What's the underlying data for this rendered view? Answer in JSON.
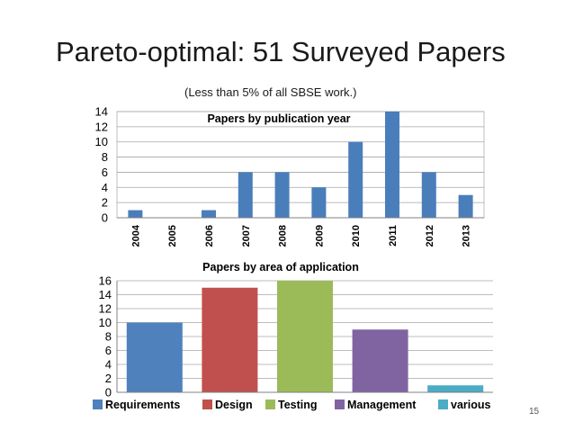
{
  "slide": {
    "title": "Pareto-optimal: 51 Surveyed Papers",
    "subtitle": "(Less than 5% of all SBSE work.)",
    "page_number": "15"
  },
  "chart_data": [
    {
      "type": "bar",
      "title": "Papers by publication year",
      "categories": [
        "2004",
        "2005",
        "2006",
        "2007",
        "2008",
        "2009",
        "2010",
        "2011",
        "2012",
        "2013"
      ],
      "values": [
        1,
        0,
        1,
        6,
        6,
        4,
        10,
        14,
        6,
        3
      ],
      "ylim": [
        0,
        14
      ],
      "yticks": [
        0,
        2,
        4,
        6,
        8,
        10,
        12,
        14
      ],
      "color": "#4a7ebb",
      "grid": true,
      "legend": "none"
    },
    {
      "type": "bar",
      "title": "Papers by area of application",
      "categories": [
        "Requirements",
        "Design",
        "Testing",
        "Management",
        "various"
      ],
      "values": [
        10,
        15,
        16,
        9,
        1
      ],
      "colors": [
        "#4f81bd",
        "#c0504d",
        "#9bbb59",
        "#8064a2",
        "#4bacc6"
      ],
      "ylim": [
        0,
        16
      ],
      "yticks": [
        0,
        2,
        4,
        6,
        8,
        10,
        12,
        14,
        16
      ],
      "grid": true,
      "legend": "bottom"
    }
  ]
}
